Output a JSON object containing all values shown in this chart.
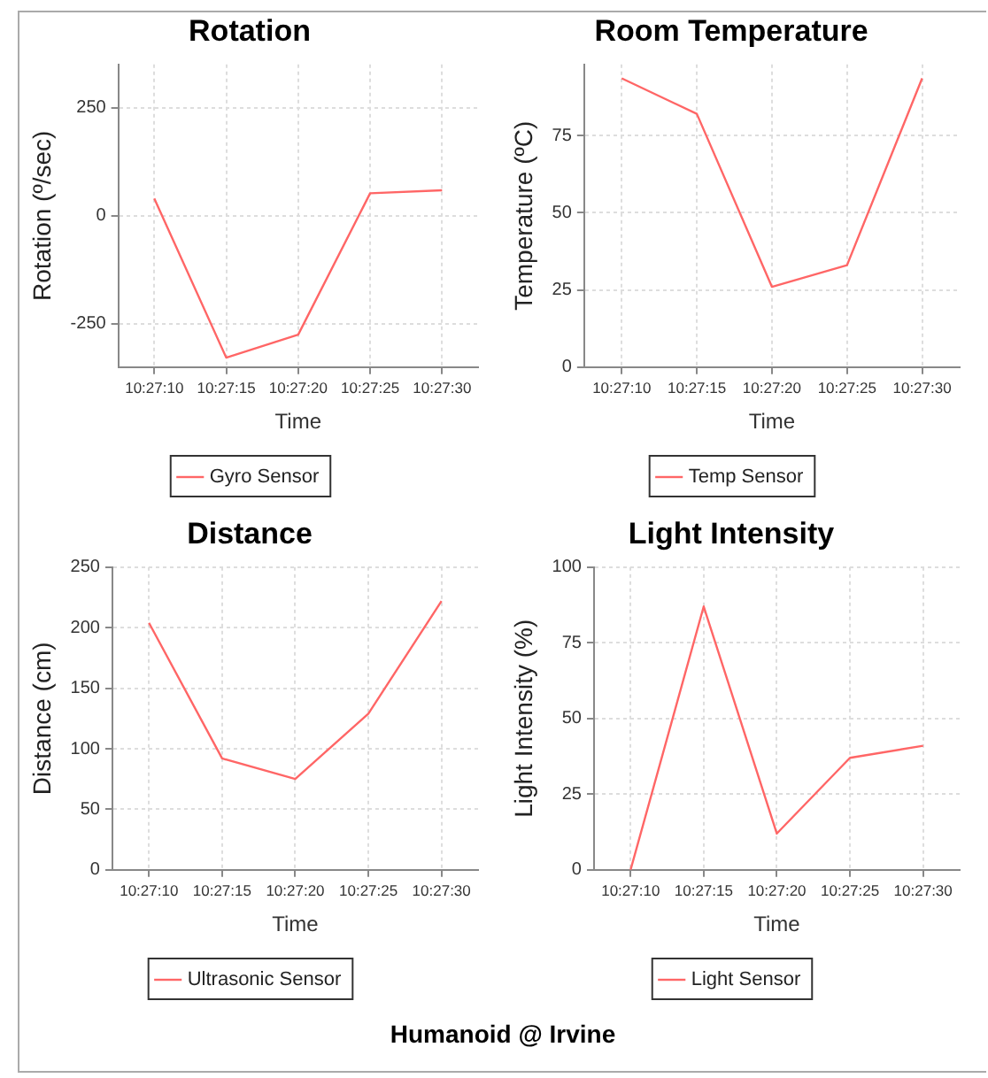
{
  "chart_data": [
    {
      "type": "line",
      "title": "Rotation",
      "xlabel": "Time",
      "ylabel": "Rotation (º/sec)",
      "categories": [
        "10:27:10",
        "10:27:15",
        "10:27:20",
        "10:27:25",
        "10:27:30"
      ],
      "series": [
        {
          "name": "Gyro Sensor",
          "color": "#ff6666",
          "values": [
            40,
            -328,
            -275,
            52,
            59
          ]
        }
      ],
      "ylim": [
        -350,
        350
      ],
      "yticks": [
        -250,
        0,
        250
      ],
      "grid": true,
      "legend": "bottom"
    },
    {
      "type": "line",
      "title": "Room Temperature",
      "xlabel": "Time",
      "ylabel": "Temperature (ºC)",
      "categories": [
        "10:27:10",
        "10:27:15",
        "10:27:20",
        "10:27:25",
        "10:27:30"
      ],
      "series": [
        {
          "name": "Temp Sensor",
          "color": "#ff6666",
          "values": [
            93.5,
            82,
            26,
            33,
            93.5
          ]
        }
      ],
      "ylim": [
        0,
        98
      ],
      "yticks": [
        0,
        25,
        50,
        75
      ],
      "grid": true,
      "legend": "bottom"
    },
    {
      "type": "line",
      "title": "Distance",
      "xlabel": "Time",
      "ylabel": "Distance (cm)",
      "categories": [
        "10:27:10",
        "10:27:15",
        "10:27:20",
        "10:27:25",
        "10:27:30"
      ],
      "series": [
        {
          "name": "Ultrasonic Sensor",
          "color": "#ff6666",
          "values": [
            204,
            92,
            75,
            129,
            222
          ]
        }
      ],
      "ylim": [
        0,
        250
      ],
      "yticks": [
        0,
        50,
        100,
        150,
        200,
        250
      ],
      "grid": true,
      "legend": "bottom"
    },
    {
      "type": "line",
      "title": "Light Intensity",
      "xlabel": "Time",
      "ylabel": "Light Intensity (%)",
      "categories": [
        "10:27:10",
        "10:27:15",
        "10:27:20",
        "10:27:25",
        "10:27:30"
      ],
      "series": [
        {
          "name": "Light Sensor",
          "color": "#ff6666",
          "values": [
            0,
            87,
            12,
            37,
            41
          ]
        }
      ],
      "ylim": [
        0,
        100
      ],
      "yticks": [
        0,
        25,
        50,
        75,
        100
      ],
      "grid": true,
      "legend": "bottom",
      "annotations": [
        "Humanoid @ Irvine"
      ]
    }
  ]
}
